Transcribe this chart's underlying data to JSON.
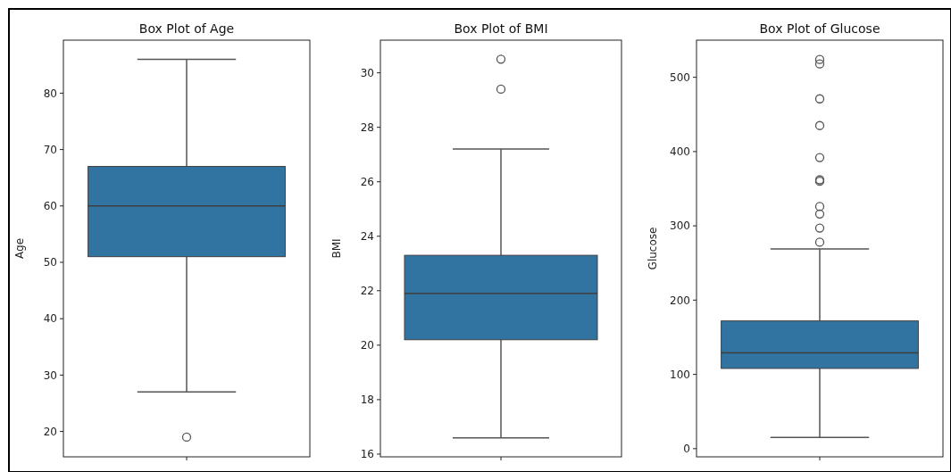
{
  "chart_data": [
    {
      "type": "box",
      "title": "Box Plot of Age",
      "ylabel": "Age",
      "categories": [
        null
      ],
      "color": "#3274a1",
      "tick_labels": "y",
      "ylim": [
        15.5,
        89.4
      ],
      "yticks": [
        20,
        30,
        40,
        50,
        60,
        70,
        80
      ],
      "boxes": [
        {
          "low": 27,
          "q1": 51,
          "median": 60,
          "q3": 67,
          "high": 86,
          "outliers": [
            19
          ]
        }
      ]
    },
    {
      "type": "box",
      "title": "Box Plot of BMI",
      "ylabel": "BMI",
      "categories": [
        null
      ],
      "color": "#3274a1",
      "tick_labels": "y",
      "ylim": [
        15.9,
        31.2
      ],
      "yticks": [
        16,
        18,
        20,
        22,
        24,
        26,
        28,
        30
      ],
      "boxes": [
        {
          "low": 16.6,
          "q1": 20.2,
          "median": 21.9,
          "q3": 23.3,
          "high": 27.2,
          "outliers": [
            29.4,
            30.5
          ]
        }
      ]
    },
    {
      "type": "box",
      "title": "Box Plot of Glucose",
      "ylabel": "Glucose",
      "categories": [
        null
      ],
      "color": "#3274a1",
      "tick_labels": "y",
      "ylim": [
        -11,
        550
      ],
      "yticks": [
        0,
        100,
        200,
        300,
        400,
        500
      ],
      "boxes": [
        {
          "low": 15,
          "q1": 108,
          "median": 129,
          "q3": 172,
          "high": 269,
          "outliers": [
            278,
            297,
            316,
            326,
            360,
            362,
            392,
            435,
            471,
            518,
            524
          ]
        }
      ]
    }
  ]
}
